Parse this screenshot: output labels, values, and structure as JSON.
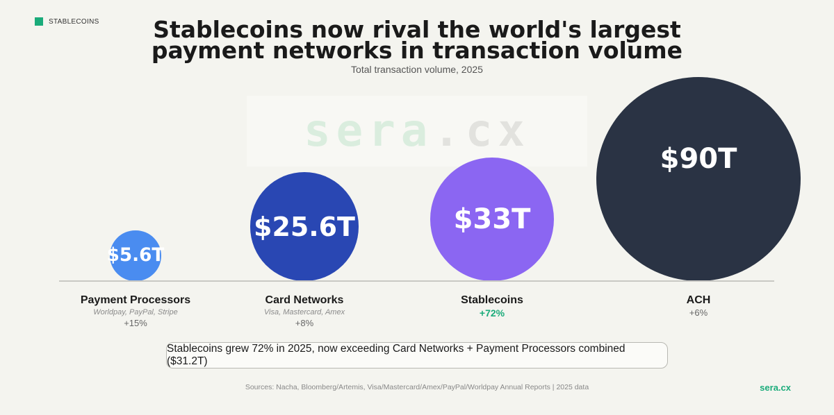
{
  "header": {
    "tag": "STABLECOINS",
    "title_line1": "Stablecoins now rival the world's largest",
    "title_line2": "payment networks in transaction volume",
    "subtitle": "Total transaction volume, 2025"
  },
  "watermark": {
    "part1": "sera",
    "part2": ".cx"
  },
  "colors": {
    "accent": "#1aab7a",
    "payment_processors": "#4a8cf0",
    "card_networks": "#2947b3",
    "stablecoins": "#8b66f2",
    "ach": "#2a3344"
  },
  "chart_data": {
    "type": "bubble",
    "title": "Stablecoins now rival the world's largest payment networks in transaction volume",
    "subtitle": "Total transaction volume, 2025",
    "categories": [
      "Payment Processors",
      "Card Networks",
      "Stablecoins",
      "ACH"
    ],
    "values": [
      5.6,
      25.6,
      33,
      90
    ],
    "unit": "T (USD trillions)",
    "value_labels": [
      "$5.6T",
      "$25.6T",
      "$33T",
      "$90T"
    ],
    "sublabels": [
      "Worldpay, PayPal, Stripe",
      "Visa, Mastercard, Amex",
      "",
      ""
    ],
    "growth": [
      "+15%",
      "+8%",
      "+72%",
      "+6%"
    ],
    "highlight": "Stablecoins"
  },
  "callout": "Stablecoins grew 72% in 2025, now exceeding Card Networks + Payment Processors combined ($31.2T)",
  "footer": {
    "sources": "Sources: Nacha, Bloomberg/Artemis, Visa/Mastercard/Amex/PayPal/Worldpay Annual Reports  |  2025 data",
    "brand": "sera.cx"
  }
}
